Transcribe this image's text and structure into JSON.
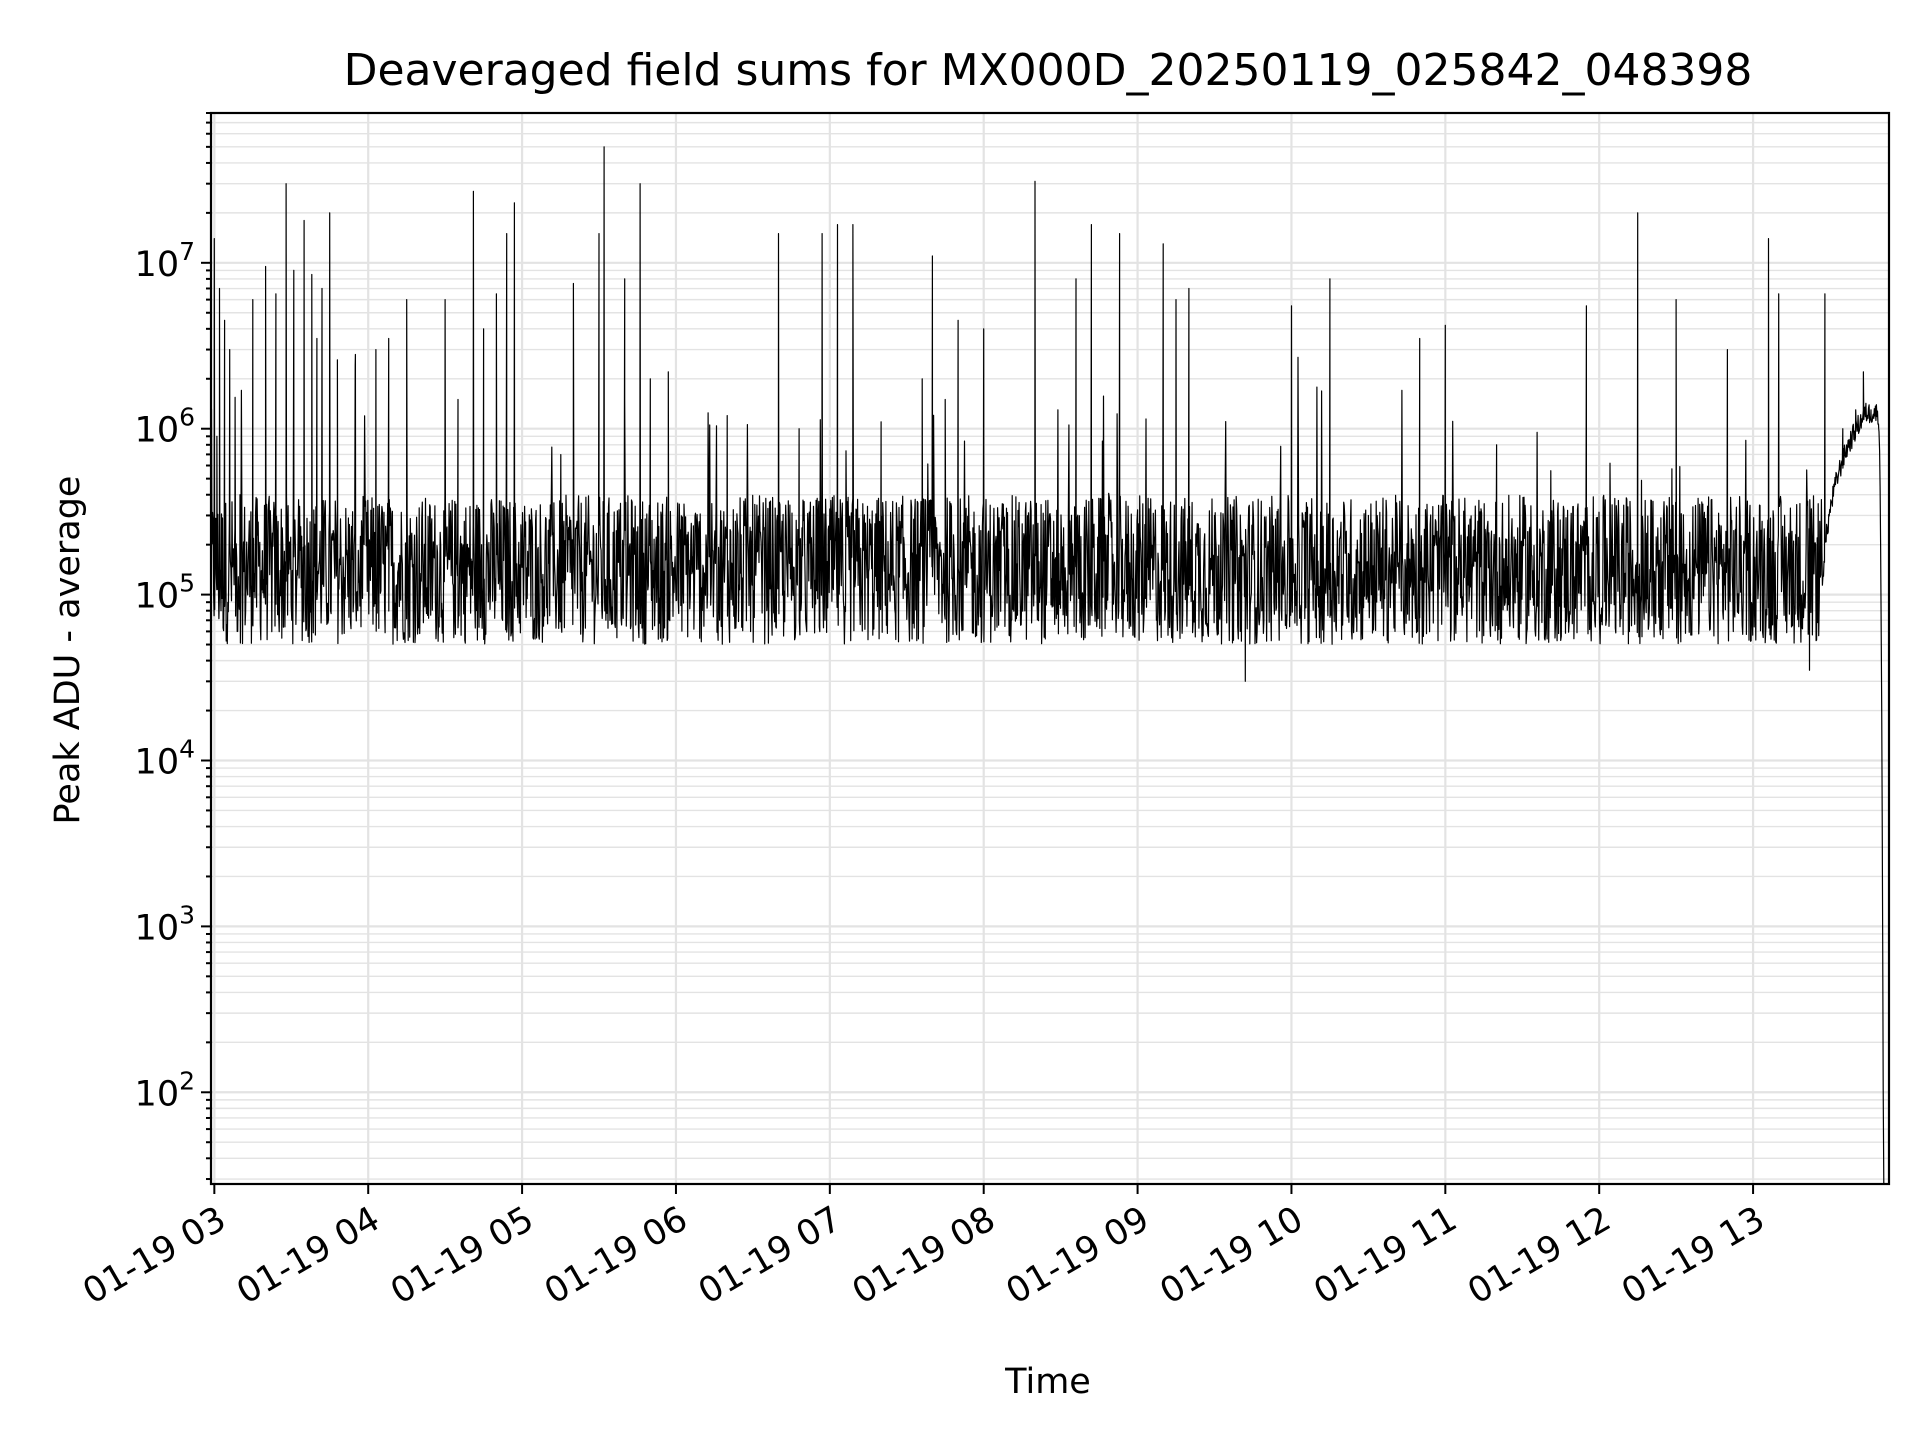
{
  "chart_data": {
    "type": "line",
    "title": "Deaveraged field sums for MX000D_20250119_025842_048398",
    "xlabel": "Time",
    "ylabel": "Peak ADU - average",
    "x_axis": {
      "kind": "time",
      "range": [
        "2025-01-19T02:58:42",
        "2025-01-19T13:53:00"
      ],
      "ticks": [
        "2025-01-19T03:00",
        "2025-01-19T04:00",
        "2025-01-19T05:00",
        "2025-01-19T06:00",
        "2025-01-19T07:00",
        "2025-01-19T08:00",
        "2025-01-19T09:00",
        "2025-01-19T10:00",
        "2025-01-19T11:00",
        "2025-01-19T12:00",
        "2025-01-19T13:00"
      ],
      "tick_labels": [
        "01-19 03",
        "01-19 04",
        "01-19 05",
        "01-19 06",
        "01-19 07",
        "01-19 08",
        "01-19 09",
        "01-19 10",
        "01-19 11",
        "01-19 12",
        "01-19 13"
      ],
      "tick_label_rotation_deg": 30
    },
    "y_axis": {
      "scale": "log",
      "range": [
        28,
        80000000
      ],
      "tick_bases": [
        "10",
        "10",
        "10",
        "10",
        "10",
        "10"
      ],
      "tick_exponents": [
        "2",
        "3",
        "4",
        "5",
        "6",
        "7"
      ]
    },
    "grid": true,
    "line_color": "#000000",
    "grid_color": "#e3e3e3",
    "series": [
      {
        "note_values": "approximate read-off of the noisy trace; baseline around 1e5 with sporadic spikes",
        "points": [
          [
            "2025-01-19T02:58:42",
            150000
          ],
          [
            "2025-01-19T03:00",
            14000000
          ],
          [
            "2025-01-19T03:01",
            900000
          ],
          [
            "2025-01-19T03:02",
            7000000
          ],
          [
            "2025-01-19T03:04",
            4500000
          ],
          [
            "2025-01-19T03:06",
            3000000
          ],
          [
            "2025-01-19T03:08",
            250000
          ],
          [
            "2025-01-19T03:10",
            400000
          ],
          [
            "2025-01-19T03:15",
            6000000
          ],
          [
            "2025-01-19T03:20",
            9500000
          ],
          [
            "2025-01-19T03:24",
            6500000
          ],
          [
            "2025-01-19T03:28",
            30000000
          ],
          [
            "2025-01-19T03:31",
            9000000
          ],
          [
            "2025-01-19T03:35",
            18000000
          ],
          [
            "2025-01-19T03:38",
            8500000
          ],
          [
            "2025-01-19T03:40",
            3500000
          ],
          [
            "2025-01-19T03:42",
            7000000
          ],
          [
            "2025-01-19T03:45",
            20000000
          ],
          [
            "2025-01-19T03:48",
            2600000
          ],
          [
            "2025-01-19T03:55",
            2800000
          ],
          [
            "2025-01-19T04:03",
            3000000
          ],
          [
            "2025-01-19T04:08",
            3500000
          ],
          [
            "2025-01-19T04:15",
            6000000
          ],
          [
            "2025-01-19T04:30",
            6000000
          ],
          [
            "2025-01-19T04:35",
            1500000
          ],
          [
            "2025-01-19T04:41",
            27000000
          ],
          [
            "2025-01-19T04:45",
            4000000
          ],
          [
            "2025-01-19T04:50",
            6500000
          ],
          [
            "2025-01-19T04:54",
            15000000
          ],
          [
            "2025-01-19T04:57",
            23000000
          ],
          [
            "2025-01-19T05:20",
            7500000
          ],
          [
            "2025-01-19T05:30",
            15000000
          ],
          [
            "2025-01-19T05:32",
            50000000
          ],
          [
            "2025-01-19T05:40",
            8000000
          ],
          [
            "2025-01-19T05:46",
            30000000
          ],
          [
            "2025-01-19T05:50",
            2000000
          ],
          [
            "2025-01-19T05:57",
            2200000
          ],
          [
            "2025-01-19T06:20",
            1200000
          ],
          [
            "2025-01-19T06:40",
            15000000
          ],
          [
            "2025-01-19T06:48",
            1000000
          ],
          [
            "2025-01-19T06:57",
            15000000
          ],
          [
            "2025-01-19T07:03",
            17000000
          ],
          [
            "2025-01-19T07:09",
            17000000
          ],
          [
            "2025-01-19T07:20",
            1100000
          ],
          [
            "2025-01-19T07:36",
            2000000
          ],
          [
            "2025-01-19T07:40",
            11000000
          ],
          [
            "2025-01-19T07:45",
            1500000
          ],
          [
            "2025-01-19T07:50",
            4500000
          ],
          [
            "2025-01-19T08:00",
            4000000
          ],
          [
            "2025-01-19T08:20",
            31000000
          ],
          [
            "2025-01-19T08:36",
            8000000
          ],
          [
            "2025-01-19T08:42",
            17000000
          ],
          [
            "2025-01-19T08:53",
            15000000
          ],
          [
            "2025-01-19T09:10",
            13000000
          ],
          [
            "2025-01-19T09:15",
            6000000
          ],
          [
            "2025-01-19T09:20",
            7000000
          ],
          [
            "2025-01-19T09:30",
            300000
          ],
          [
            "2025-01-19T09:40",
            60000
          ],
          [
            "2025-01-19T09:42",
            30000
          ],
          [
            "2025-01-19T10:00",
            5500000
          ],
          [
            "2025-01-19T10:15",
            8000000
          ],
          [
            "2025-01-19T10:30",
            300000
          ],
          [
            "2025-01-19T10:50",
            3500000
          ],
          [
            "2025-01-19T11:00",
            4200000
          ],
          [
            "2025-01-19T11:20",
            800000
          ],
          [
            "2025-01-19T11:55",
            5500000
          ],
          [
            "2025-01-19T12:15",
            20000000
          ],
          [
            "2025-01-19T12:30",
            6000000
          ],
          [
            "2025-01-19T12:50",
            3000000
          ],
          [
            "2025-01-19T13:06",
            14000000
          ],
          [
            "2025-01-19T13:10",
            6500000
          ],
          [
            "2025-01-19T13:15",
            150000
          ],
          [
            "2025-01-19T13:22",
            35000
          ],
          [
            "2025-01-19T13:28",
            6500000
          ],
          [
            "2025-01-19T13:35",
            1000000
          ],
          [
            "2025-01-19T13:40",
            1300000
          ],
          [
            "2025-01-19T13:43",
            2200000
          ],
          [
            "2025-01-19T13:46",
            1300000
          ],
          [
            "2025-01-19T13:49",
            1000000
          ],
          [
            "2025-01-19T13:51",
            28
          ]
        ]
      }
    ]
  }
}
